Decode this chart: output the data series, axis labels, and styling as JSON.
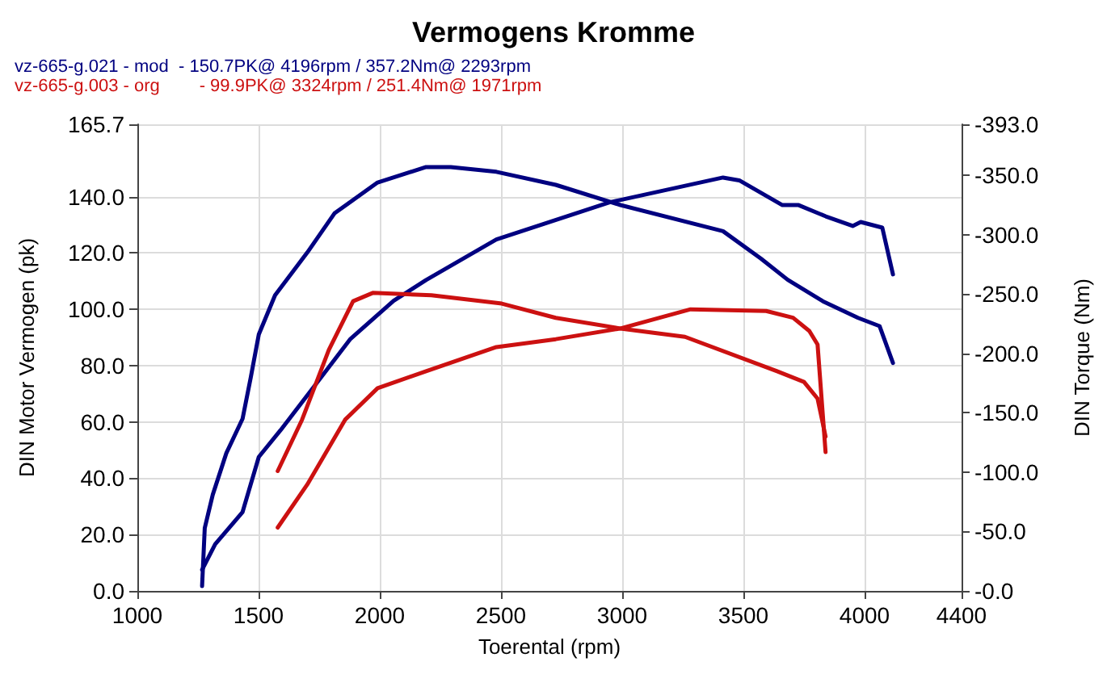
{
  "chart_data": {
    "type": "line",
    "title": "Vermogens Kromme",
    "xlabel": "Toerental (rpm)",
    "ylabel": "DIN Motor Vermogen (pk)",
    "y2label": "DIN Torque (Nm)",
    "xlim": [
      1000,
      4400
    ],
    "xticks": [
      1000,
      1500,
      2000,
      2500,
      3000,
      3500,
      4000,
      4400
    ],
    "ylim": [
      0,
      165.7
    ],
    "yticks": [
      {
        "value": 0,
        "label": "0.0"
      },
      {
        "value": 20,
        "label": "20.0"
      },
      {
        "value": 40,
        "label": "40.0"
      },
      {
        "value": 60,
        "label": "60.0"
      },
      {
        "value": 80,
        "label": "80.0"
      },
      {
        "value": 100,
        "label": "100.0"
      },
      {
        "value": 120,
        "label": "120.0"
      },
      {
        "value": 140,
        "label": "140.0"
      },
      {
        "value": 165.7,
        "label": "165.7"
      }
    ],
    "y2lim": [
      0,
      -393
    ],
    "y2ticks": [
      {
        "value": 0,
        "label": "-0.0"
      },
      {
        "value": -50,
        "label": "-50.0"
      },
      {
        "value": -100,
        "label": "-100.0"
      },
      {
        "value": -150,
        "label": "-150.0"
      },
      {
        "value": -200,
        "label": "-200.0"
      },
      {
        "value": -250,
        "label": "-250.0"
      },
      {
        "value": -300,
        "label": "-300.0"
      },
      {
        "value": -350,
        "label": "-350.0"
      },
      {
        "value": -393,
        "label": "-393.0"
      }
    ],
    "grid": true,
    "legend": "top left",
    "marker": "none",
    "line_style": "solid",
    "series": [
      {
        "name": "vz-665-g.021 - mod  - 150.7PK@ 4196rpm / 357.2Nm@ 2293rpm",
        "color": "#000080",
        "x": [
          1267,
          1321,
          1434,
          1501,
          1590,
          1724,
          1879,
          2057,
          2191,
          2481,
          2948,
          3416,
          3483,
          3661,
          3728,
          3840,
          3951,
          3984,
          4073,
          4117
        ],
        "values": [
          7.5,
          16.6,
          28,
          47.6,
          57,
          72,
          89.5,
          103,
          110.4,
          124.8,
          138,
          146.8,
          145.8,
          137,
          137,
          133,
          129.6,
          131,
          129,
          112.4
        ]
      },
      {
        "name": "vz-665-g.003 - org        - 99.9PK@ 3324rpm / 251.4Nm@ 1971rpm",
        "color": "#cc1111",
        "x": [
          1579,
          1701,
          1857,
          1991,
          2191,
          2481,
          2726,
          2993,
          3282,
          3324,
          3594,
          3705,
          3772,
          3806,
          3839
        ],
        "values": [
          22.5,
          37.8,
          60.8,
          72,
          78,
          86.6,
          89.4,
          93.2,
          100,
          99.9,
          99.4,
          97,
          92.3,
          87.5,
          49.3
        ]
      },
      {
        "color": "#000080",
        "axis": "y2",
        "x": [
          1267,
          1278,
          1311,
          1367,
          1434,
          1468,
          1501,
          1568,
          1701,
          1813,
          1991,
          2191,
          2293,
          2481,
          2726,
          2993,
          3416,
          3572,
          3683,
          3828,
          3973,
          4062,
          4117
        ],
        "values": [
          -4,
          -53,
          -81,
          -116,
          -145,
          -180,
          -216,
          -249,
          -285,
          -318,
          -344,
          -357,
          -357,
          -353,
          -342,
          -325,
          -303,
          -280,
          -262,
          -244,
          -230,
          -223,
          -192
        ]
      },
      {
        "color": "#cc1111",
        "axis": "y2",
        "x": [
          1579,
          1679,
          1790,
          1890,
          1971,
          2213,
          2503,
          2726,
          2993,
          3259,
          3639,
          3750,
          3806,
          3839
        ],
        "values": [
          -101,
          -144,
          -203,
          -244,
          -251,
          -249,
          -242,
          -230,
          -221,
          -214,
          -185,
          -176,
          -162,
          -130
        ]
      }
    ]
  }
}
